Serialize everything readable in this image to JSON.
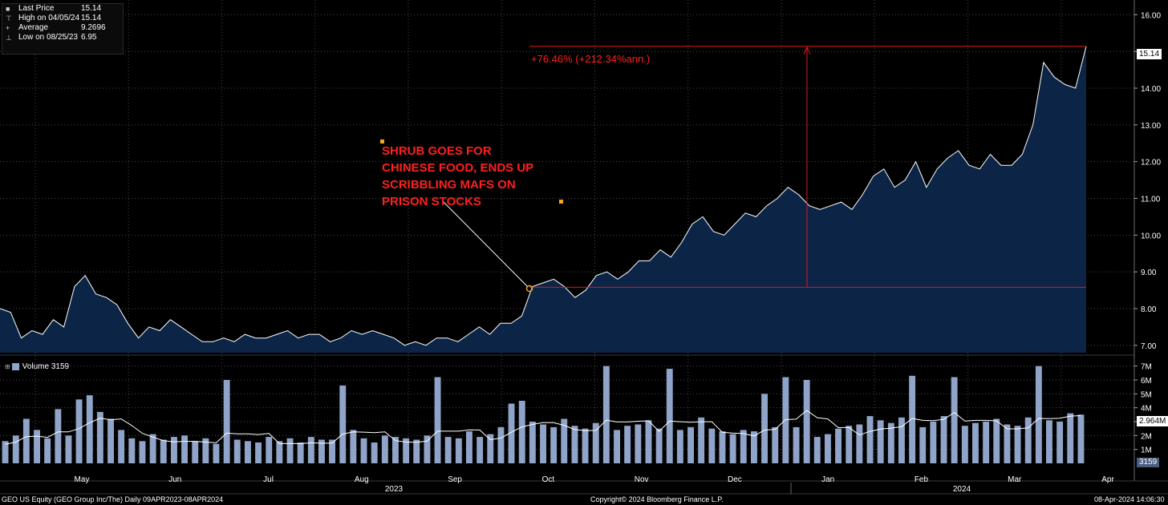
{
  "legend": {
    "rows": [
      {
        "name": "Last Price",
        "value": "15.14",
        "marker": "■"
      },
      {
        "name": "High on 04/05/24",
        "value": "15.14",
        "marker": "⊤"
      },
      {
        "name": "Average",
        "value": "9.2696",
        "marker": "+"
      },
      {
        "name": "Low on 08/25/23",
        "value": "6.95",
        "marker": "⊥"
      }
    ]
  },
  "volume_legend": {
    "label": "Volume 3159",
    "color": "#8fa4c8"
  },
  "annotation": {
    "text": "SHRUB GOES FOR\nCHINESE FOOD, ENDS UP\nSCRIBBLING MAFS ON\nPRISON STOCKS"
  },
  "change_label": "+76.46% (+212.34%ann.)",
  "price_tag": "15.14",
  "volume_tag": "2.964M",
  "volume_tag2": "3159",
  "footer": {
    "left": "GEO US Equity (GEO Group Inc/The)  Daily 09APR2023-08APR2024",
    "center": "Copyright© 2024 Bloomberg Finance L.P.",
    "right": "08-Apr-2024 14:06:30"
  },
  "colors": {
    "price_line": "#ffffff",
    "area_fill": "#0c2547",
    "volume_bar": "#8fa4c8",
    "annotation": "#ff1f1f"
  },
  "chart_data": [
    {
      "type": "area",
      "series": [
        {
          "name": "Last Price",
          "values": [
            8.0,
            7.9,
            7.2,
            7.4,
            7.3,
            7.7,
            7.5,
            8.6,
            8.9,
            8.4,
            8.3,
            8.1,
            7.6,
            7.2,
            7.5,
            7.4,
            7.7,
            7.5,
            7.3,
            7.1,
            7.1,
            7.2,
            7.1,
            7.3,
            7.2,
            7.2,
            7.3,
            7.4,
            7.2,
            7.3,
            7.3,
            7.1,
            7.2,
            7.4,
            7.3,
            7.4,
            7.3,
            7.2,
            7.0,
            7.1,
            7.0,
            7.2,
            7.2,
            7.1,
            7.3,
            7.5,
            7.3,
            7.6,
            7.6,
            7.8,
            8.6,
            8.7,
            8.8,
            8.6,
            8.3,
            8.5,
            8.9,
            9.0,
            8.8,
            9.0,
            9.3,
            9.3,
            9.6,
            9.4,
            9.8,
            10.3,
            10.5,
            10.1,
            10.0,
            10.3,
            10.6,
            10.5,
            10.8,
            11.0,
            11.3,
            11.1,
            10.8,
            10.7,
            10.8,
            10.9,
            10.7,
            11.1,
            11.6,
            11.8,
            11.3,
            11.5,
            12.0,
            11.3,
            11.8,
            12.1,
            12.3,
            11.9,
            11.8,
            12.2,
            11.9,
            11.9,
            12.2,
            13.0,
            14.7,
            14.3,
            14.1,
            14.0,
            15.14
          ]
        }
      ],
      "x_start": "2023-04-09",
      "x_end": "2024-04-08",
      "x_tick_labels": [
        "May",
        "Jun",
        "Jul",
        "Aug",
        "Sep",
        "Oct",
        "Nov",
        "Dec",
        "Jan",
        "Feb",
        "Mar",
        "Apr"
      ],
      "x_year_labels": [
        "2023",
        "2024"
      ],
      "y_ticks": [
        "7.00",
        "8.00",
        "9.00",
        "10.00",
        "11.00",
        "12.00",
        "13.00",
        "14.00",
        "15.00",
        "16.00"
      ],
      "ylim": [
        6.8,
        16.4
      ],
      "ylabel": "",
      "xlabel": "",
      "grid": true,
      "high": 15.14,
      "low": 6.95,
      "average": 9.2696,
      "reference_line": {
        "from": 8.58,
        "to": 15.14
      }
    },
    {
      "type": "bar",
      "series": [
        {
          "name": "Volume",
          "values": [
            1.6,
            2.0,
            3.2,
            2.4,
            1.8,
            3.9,
            2.0,
            4.6,
            4.9,
            3.7,
            3.2,
            2.4,
            1.8,
            1.6,
            2.1,
            1.7,
            1.9,
            2.0,
            1.6,
            1.8,
            1.4,
            6.0,
            1.7,
            1.6,
            1.5,
            1.9,
            1.6,
            1.8,
            1.5,
            1.9,
            1.7,
            1.7,
            5.6,
            2.4,
            1.8,
            1.5,
            2.0,
            1.9,
            1.8,
            1.7,
            2.0,
            6.2,
            1.9,
            1.8,
            2.3,
            1.9,
            2.1,
            2.6,
            4.3,
            4.5,
            3.0,
            2.8,
            2.6,
            3.2,
            2.7,
            2.5,
            2.9,
            7.0,
            2.4,
            2.7,
            2.8,
            3.1,
            2.5,
            6.8,
            2.4,
            2.6,
            3.3,
            2.5,
            2.3,
            2.1,
            2.4,
            2.3,
            5.0,
            2.6,
            6.2,
            2.6,
            6.0,
            1.9,
            2.1,
            2.5,
            2.7,
            2.8,
            3.4,
            3.1,
            2.9,
            3.3,
            6.3,
            2.6,
            3.0,
            3.4,
            6.2,
            2.7,
            2.9,
            3.0,
            3.2,
            2.8,
            2.7,
            3.3,
            7.0,
            3.1,
            3.0,
            3.6,
            3.5
          ]
        }
      ],
      "average_line": 2.964,
      "y_ticks": [
        "1M",
        "2M",
        "3M",
        "4M",
        "5M",
        "6M",
        "7M"
      ],
      "ylim": [
        0,
        7.5
      ]
    }
  ]
}
